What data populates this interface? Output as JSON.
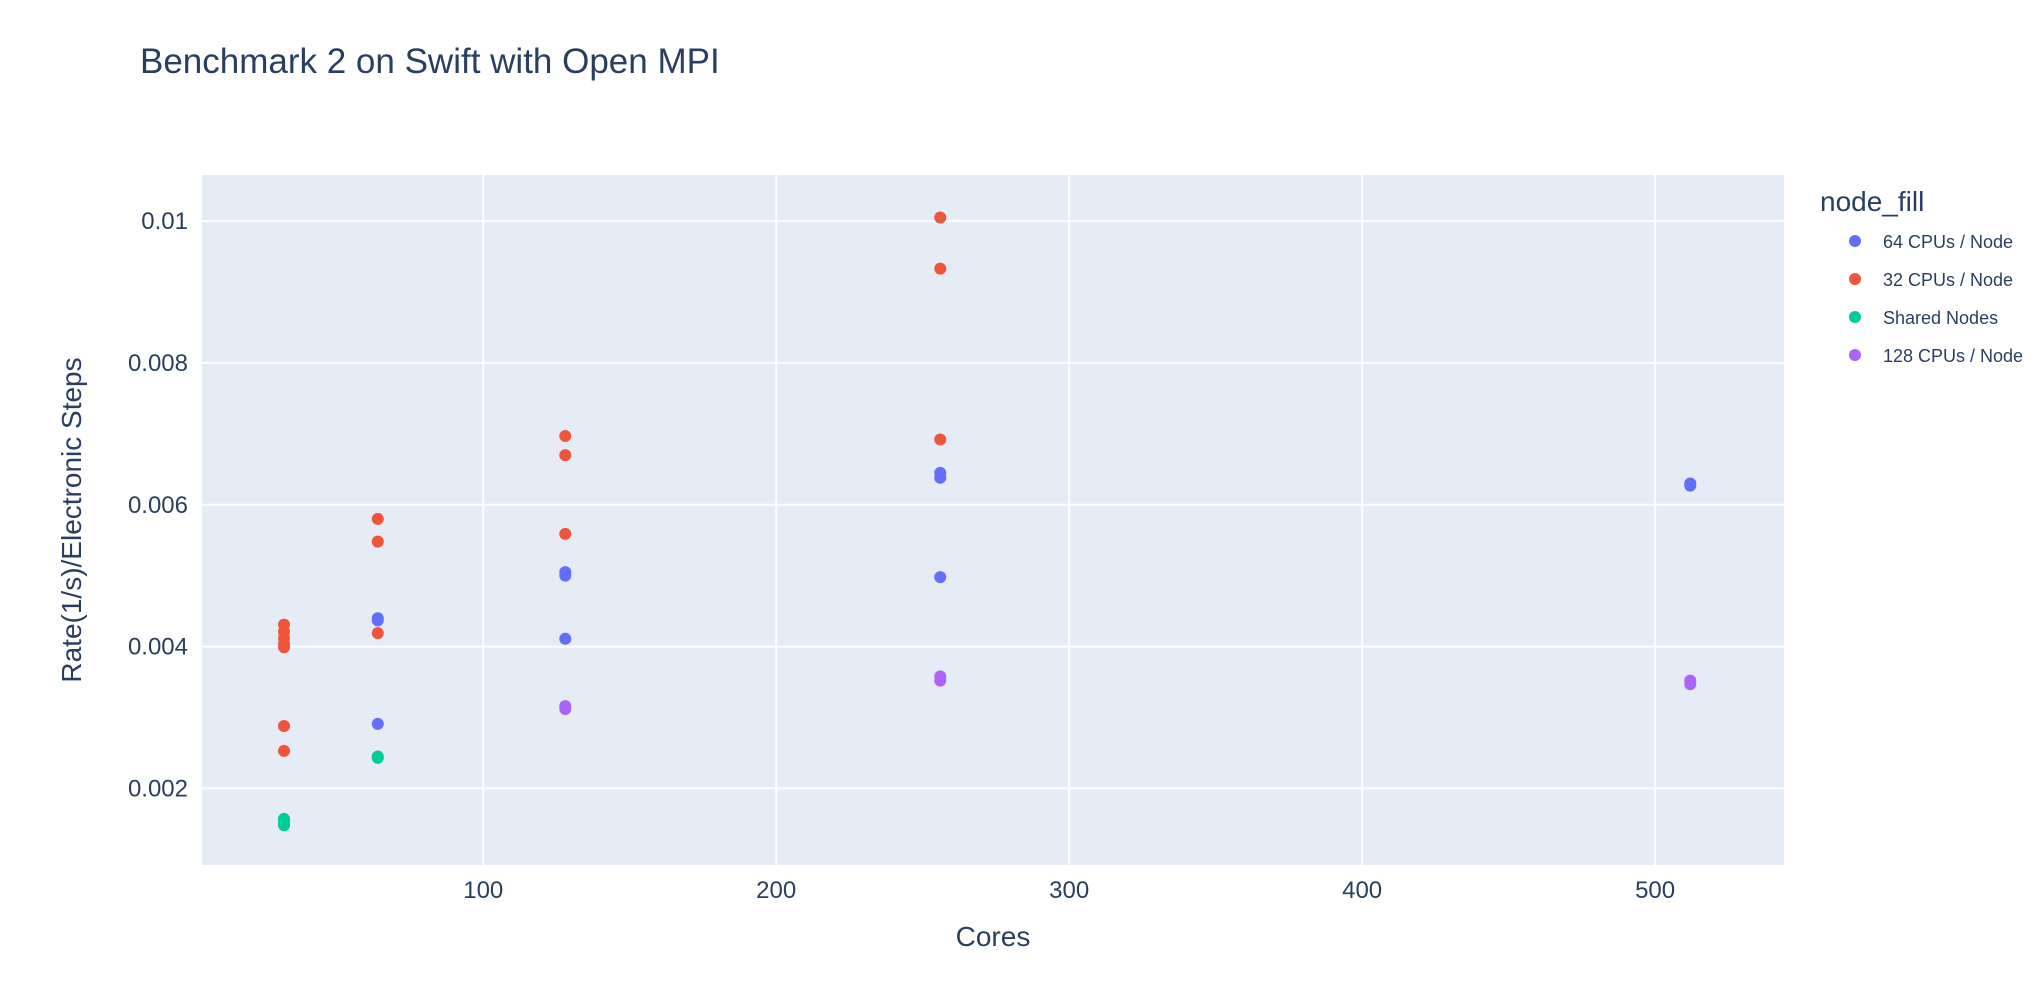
{
  "chart_data": {
    "type": "scatter",
    "title": "Benchmark 2 on Swift with Open MPI",
    "xlabel": "Cores",
    "ylabel": "Rate(1/s)/Electronic Steps",
    "xlim": [
      4,
      544
    ],
    "ylim": [
      0.00092,
      0.01065
    ],
    "x_ticks": [
      100,
      200,
      300,
      400,
      500
    ],
    "y_ticks": [
      0.002,
      0.004,
      0.006,
      0.008,
      0.01
    ],
    "y_tick_labels": [
      "0.002",
      "0.004",
      "0.006",
      "0.008",
      "0.01"
    ],
    "grid": true,
    "legend_title": "node_fill",
    "legend_position": "right",
    "series": [
      {
        "name": "64 CPUs / Node",
        "color": "#636efa",
        "points": [
          [
            64,
            0.00437
          ],
          [
            64,
            0.0044
          ],
          [
            64,
            0.00291
          ],
          [
            128,
            0.00505
          ],
          [
            128,
            0.005
          ],
          [
            128,
            0.00411
          ],
          [
            256,
            0.00645
          ],
          [
            256,
            0.00638
          ],
          [
            256,
            0.00498
          ],
          [
            512,
            0.0063
          ],
          [
            512,
            0.00627
          ]
        ]
      },
      {
        "name": "32 CPUs / Node",
        "color": "#EF553B",
        "points": [
          [
            32,
            0.00431
          ],
          [
            32,
            0.00421
          ],
          [
            32,
            0.00412
          ],
          [
            32,
            0.00404
          ],
          [
            32,
            0.00399
          ],
          [
            32,
            0.00288
          ],
          [
            32,
            0.00253
          ],
          [
            64,
            0.0058
          ],
          [
            64,
            0.00548
          ],
          [
            64,
            0.00419
          ],
          [
            128,
            0.00697
          ],
          [
            128,
            0.0067
          ],
          [
            128,
            0.00559
          ],
          [
            256,
            0.01005
          ],
          [
            256,
            0.00933
          ],
          [
            256,
            0.00692
          ]
        ]
      },
      {
        "name": "Shared Nodes",
        "color": "#00cc96",
        "points": [
          [
            32,
            0.00157
          ],
          [
            32,
            0.00154
          ],
          [
            32,
            0.0015
          ],
          [
            32,
            0.00148
          ],
          [
            64,
            0.00245
          ],
          [
            64,
            0.00243
          ]
        ]
      },
      {
        "name": "128 CPUs / Node",
        "color": "#ab63fa",
        "points": [
          [
            128,
            0.00316
          ],
          [
            128,
            0.00312
          ],
          [
            256,
            0.00358
          ],
          [
            256,
            0.00352
          ],
          [
            512,
            0.00352
          ],
          [
            512,
            0.00347
          ]
        ]
      }
    ]
  }
}
